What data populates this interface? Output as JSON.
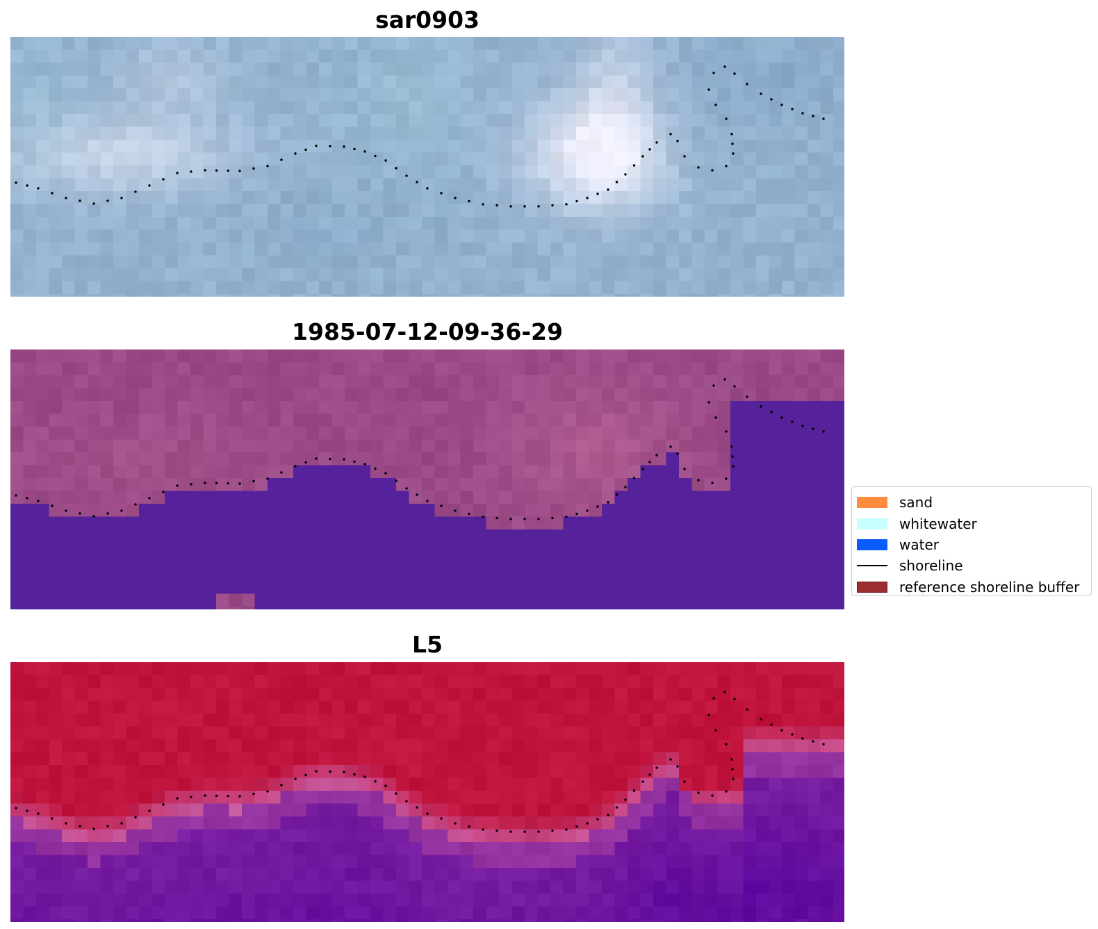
{
  "panels": [
    {
      "title": "sar0903",
      "style": "rgb"
    },
    {
      "title": "1985-07-12-09-36-29",
      "style": "classified"
    },
    {
      "title": "L5",
      "style": "index"
    }
  ],
  "legend": {
    "items": [
      {
        "label": "sand",
        "color": "#ff8c3c",
        "kind": "patch"
      },
      {
        "label": "whitewater",
        "color": "#c8ffff",
        "kind": "patch"
      },
      {
        "label": "water",
        "color": "#0a5cff",
        "kind": "patch"
      },
      {
        "label": "shoreline",
        "color": "#000000",
        "kind": "line"
      },
      {
        "label": "reference shoreline buffer",
        "color": "#9b2d32",
        "kind": "patch",
        "border": "#6e1a1f"
      }
    ]
  },
  "colors": {
    "rgb_base": "#94b2cf",
    "classified_land": "#9a4a86",
    "classified_water": "#55229b",
    "index_high": "#c0143c",
    "index_low": "#7a1fa0",
    "shoreline_dots": "#000000"
  }
}
